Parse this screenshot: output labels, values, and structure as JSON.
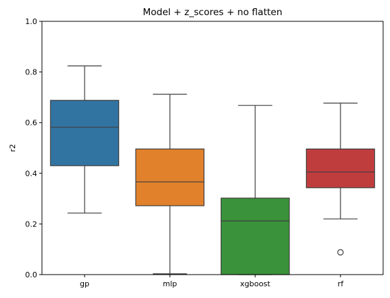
{
  "chart_data": {
    "type": "box",
    "title": "Model + z_scores + no flatten",
    "xlabel": "",
    "ylabel": "r2",
    "ylim": [
      0,
      1
    ],
    "y_ticks": [
      "0.0",
      "0.2",
      "0.4",
      "0.6",
      "0.8",
      "1.0"
    ],
    "categories": [
      "gp",
      "mlp",
      "xgboost",
      "rf"
    ],
    "grid": false,
    "legend": "none",
    "boxes": [
      {
        "category": "gp",
        "color": "#3274a1",
        "whisker_low": 0.243,
        "q1": 0.43,
        "median": 0.582,
        "q3": 0.688,
        "whisker_high": 0.824,
        "outliers": []
      },
      {
        "category": "mlp",
        "color": "#e1812c",
        "whisker_low": 0.003,
        "q1": 0.272,
        "median": 0.366,
        "q3": 0.496,
        "whisker_high": 0.712,
        "outliers": []
      },
      {
        "category": "xgboost",
        "color": "#3a923a",
        "whisker_low": 0.0,
        "q1": 0.0,
        "median": 0.212,
        "q3": 0.302,
        "whisker_high": 0.668,
        "outliers": []
      },
      {
        "category": "rf",
        "color": "#c03d3e",
        "whisker_low": 0.22,
        "q1": 0.343,
        "median": 0.405,
        "q3": 0.496,
        "whisker_high": 0.677,
        "outliers": [
          0.088
        ]
      }
    ]
  }
}
